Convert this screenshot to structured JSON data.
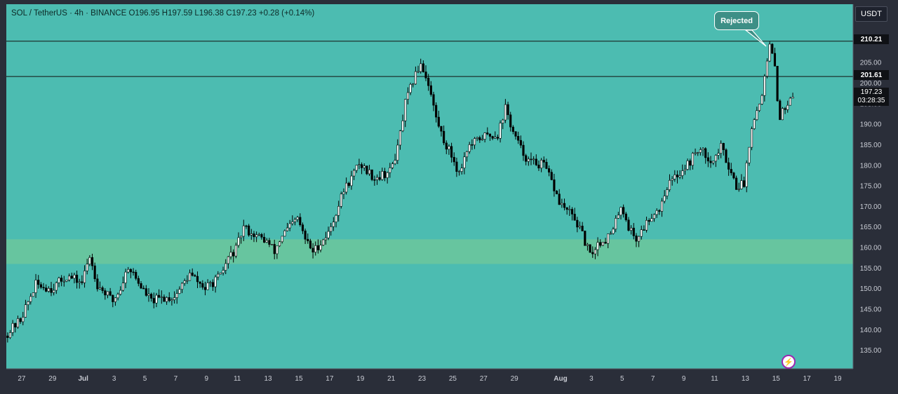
{
  "header": {
    "symbol_line": "SOL / TetherUS · 4h · BINANCE  O196.95  H197.59  L196.38  C197.23  +0.28 (+0.14%)"
  },
  "currency": "USDT",
  "annotation": {
    "label": "Rejected"
  },
  "price_tags": {
    "resistance_high": "210.21",
    "resistance_low": "201.61",
    "last_price": "197.23",
    "countdown": "03:28:35"
  },
  "colors": {
    "background": "#4cbcb1",
    "support_zone": "#6cc79c",
    "candle_up_body": "#ffffff",
    "candle_down_body": "#000000",
    "accent_purple": "#9c27b0"
  },
  "icons": {
    "alert": "lightning-icon"
  },
  "chart_data": {
    "type": "candlestick",
    "title": "",
    "xlabel": "",
    "ylabel": "",
    "ylim": [
      130.5,
      219.2
    ],
    "yticks": [
      135,
      140,
      145,
      150,
      155,
      160,
      165,
      170,
      175,
      180,
      185,
      190,
      195,
      200,
      205
    ],
    "x_date_range": [
      "2024-06-26",
      "2024-08-20"
    ],
    "xticks": [
      {
        "label": "27",
        "date": "2024-06-27"
      },
      {
        "label": "29",
        "date": "2024-06-29"
      },
      {
        "label": "Jul",
        "date": "2024-07-01"
      },
      {
        "label": "3",
        "date": "2024-07-03"
      },
      {
        "label": "5",
        "date": "2024-07-05"
      },
      {
        "label": "7",
        "date": "2024-07-07"
      },
      {
        "label": "9",
        "date": "2024-07-09"
      },
      {
        "label": "11",
        "date": "2024-07-11"
      },
      {
        "label": "13",
        "date": "2024-07-13"
      },
      {
        "label": "15",
        "date": "2024-07-15"
      },
      {
        "label": "17",
        "date": "2024-07-17"
      },
      {
        "label": "19",
        "date": "2024-07-19"
      },
      {
        "label": "21",
        "date": "2024-07-21"
      },
      {
        "label": "23",
        "date": "2024-07-23"
      },
      {
        "label": "25",
        "date": "2024-07-25"
      },
      {
        "label": "27",
        "date": "2024-07-27"
      },
      {
        "label": "29",
        "date": "2024-07-29"
      },
      {
        "label": "Aug",
        "date": "2024-08-01"
      },
      {
        "label": "3",
        "date": "2024-08-03"
      },
      {
        "label": "5",
        "date": "2024-08-05"
      },
      {
        "label": "7",
        "date": "2024-08-07"
      },
      {
        "label": "9",
        "date": "2024-08-09"
      },
      {
        "label": "11",
        "date": "2024-08-11"
      },
      {
        "label": "13",
        "date": "2024-08-13"
      },
      {
        "label": "15",
        "date": "2024-08-15"
      },
      {
        "label": "17",
        "date": "2024-08-17"
      },
      {
        "label": "19",
        "date": "2024-08-19"
      }
    ],
    "horizontal_lines": [
      210.21,
      201.61
    ],
    "support_zone": [
      156.0,
      162.0
    ],
    "price_path": [
      [
        "2024-06-26",
        138.5
      ],
      [
        "2024-06-27",
        142.5
      ],
      [
        "2024-06-28",
        151.0
      ],
      [
        "2024-06-29",
        150.0
      ],
      [
        "2024-06-30",
        153.0
      ],
      [
        "2024-07-01",
        151.5
      ],
      [
        "2024-07-01T12",
        158.0
      ],
      [
        "2024-07-02",
        151.0
      ],
      [
        "2024-07-03",
        147.0
      ],
      [
        "2024-07-03T12",
        150.0
      ],
      [
        "2024-07-04",
        155.5
      ],
      [
        "2024-07-05",
        149.5
      ],
      [
        "2024-07-05T12",
        147.0
      ],
      [
        "2024-07-06",
        147.5
      ],
      [
        "2024-07-07",
        148.0
      ],
      [
        "2024-07-08",
        153.5
      ],
      [
        "2024-07-09",
        150.0
      ],
      [
        "2024-07-10",
        153.0
      ],
      [
        "2024-07-10T12",
        157.5
      ],
      [
        "2024-07-11",
        159.5
      ],
      [
        "2024-07-11T12",
        165.0
      ],
      [
        "2024-07-12",
        163.5
      ],
      [
        "2024-07-13",
        161.5
      ],
      [
        "2024-07-13T12",
        159.0
      ],
      [
        "2024-07-14",
        163.0
      ],
      [
        "2024-07-15",
        167.0
      ],
      [
        "2024-07-15T12",
        162.0
      ],
      [
        "2024-07-16",
        159.0
      ],
      [
        "2024-07-17",
        163.5
      ],
      [
        "2024-07-17T12",
        168.5
      ],
      [
        "2024-07-18",
        174.0
      ],
      [
        "2024-07-18T12",
        177.0
      ],
      [
        "2024-07-19",
        180.5
      ],
      [
        "2024-07-20",
        177.0
      ],
      [
        "2024-07-21",
        178.5
      ],
      [
        "2024-07-21T12",
        184.0
      ],
      [
        "2024-07-22",
        195.0
      ],
      [
        "2024-07-22T12",
        200.5
      ],
      [
        "2024-07-23",
        205.0
      ],
      [
        "2024-07-23T12",
        200.0
      ],
      [
        "2024-07-24",
        191.5
      ],
      [
        "2024-07-24T12",
        186.0
      ],
      [
        "2024-07-25",
        182.5
      ],
      [
        "2024-07-25T12",
        178.0
      ],
      [
        "2024-07-26",
        184.0
      ],
      [
        "2024-07-27",
        187.0
      ],
      [
        "2024-07-28",
        187.5
      ],
      [
        "2024-07-28T12",
        194.0
      ],
      [
        "2024-07-29",
        188.0
      ],
      [
        "2024-07-29T12",
        184.0
      ],
      [
        "2024-07-30",
        181.0
      ],
      [
        "2024-07-31",
        180.0
      ],
      [
        "2024-07-31T12",
        176.0
      ],
      [
        "2024-08-01",
        171.0
      ],
      [
        "2024-08-02",
        167.0
      ],
      [
        "2024-08-02T12",
        163.0
      ],
      [
        "2024-08-03",
        158.0
      ],
      [
        "2024-08-03T12",
        161.0
      ],
      [
        "2024-08-04",
        162.0
      ],
      [
        "2024-08-04T12",
        164.0
      ],
      [
        "2024-08-05",
        170.5
      ],
      [
        "2024-08-05T12",
        165.0
      ],
      [
        "2024-08-06",
        162.0
      ],
      [
        "2024-08-07",
        168.0
      ],
      [
        "2024-08-07T12",
        169.5
      ],
      [
        "2024-08-08",
        175.0
      ],
      [
        "2024-08-09",
        179.0
      ],
      [
        "2024-08-09T12",
        181.0
      ],
      [
        "2024-08-10",
        184.0
      ],
      [
        "2024-08-11",
        181.0
      ],
      [
        "2024-08-11T12",
        184.5
      ],
      [
        "2024-08-12",
        180.0
      ],
      [
        "2024-08-12T12",
        175.0
      ],
      [
        "2024-08-13",
        175.5
      ],
      [
        "2024-08-13T12",
        190.0
      ],
      [
        "2024-08-14",
        195.0
      ],
      [
        "2024-08-14T08",
        201.0
      ],
      [
        "2024-08-14T16",
        209.0
      ],
      [
        "2024-08-15",
        204.0
      ],
      [
        "2024-08-15T04",
        196.0
      ],
      [
        "2024-08-15T08",
        192.0
      ],
      [
        "2024-08-15T16",
        194.0
      ],
      [
        "2024-08-16",
        197.23
      ]
    ],
    "last_price": 197.23
  }
}
